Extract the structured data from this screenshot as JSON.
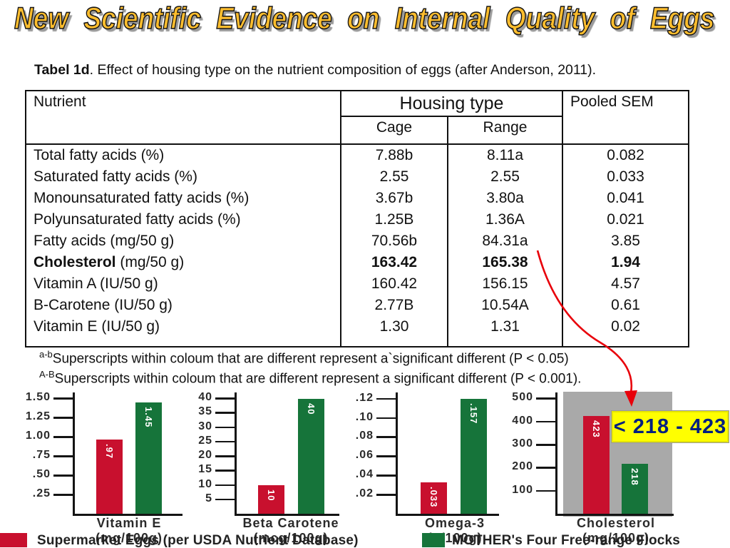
{
  "slide": {
    "title": "New Scientific Evidence on Internal Quality of Eggs",
    "caption_bold": "Tabel 1d",
    "caption_rest": ". Effect of housing type on the nutrient composition of eggs (after Anderson, 2011)."
  },
  "table": {
    "header": {
      "nutrient": "Nutrient",
      "housing": "Housing type",
      "cage": "Cage",
      "range": "Range",
      "sem": "Pooled SEM"
    },
    "rows": [
      {
        "nutrient_strong": "",
        "nutrient": "Total fatty acids (%)",
        "cage": "7.88b",
        "range": "8.11a",
        "sem": "0.082",
        "values_bold": false
      },
      {
        "nutrient_strong": "",
        "nutrient": "Saturated fatty acids (%)",
        "cage": "2.55",
        "range": "2.55",
        "sem": "0.033",
        "values_bold": false
      },
      {
        "nutrient_strong": "",
        "nutrient": "Monounsaturated fatty acids (%)",
        "cage": "3.67b",
        "range": "3.80a",
        "sem": "0.041",
        "values_bold": false
      },
      {
        "nutrient_strong": "",
        "nutrient": "Polyunsaturated fatty acids (%)",
        "cage": "1.25B",
        "range": "1.36A",
        "sem": "0.021",
        "values_bold": false
      },
      {
        "nutrient_strong": "",
        "nutrient": "Fatty acids (mg/50 g)",
        "cage": "70.56b",
        "range": "84.31a",
        "sem": "3.85",
        "values_bold": false
      },
      {
        "nutrient_strong": "Cholesterol",
        "nutrient": " (mg/50 g)",
        "cage": "163.42",
        "range": "165.38",
        "sem": "1.94",
        "values_bold": true
      },
      {
        "nutrient_strong": "",
        "nutrient": "Vitamin A (IU/50 g)",
        "cage": "160.42",
        "range": "156.15",
        "sem": "4.57",
        "values_bold": false
      },
      {
        "nutrient_strong": "",
        "nutrient": "B-Carotene (IU/50 g)",
        "cage": "2.77B",
        "range": "10.54A",
        "sem": "0.61",
        "values_bold": false
      },
      {
        "nutrient_strong": "",
        "nutrient": "Vitamin E (IU/50 g)",
        "cage": "1.30",
        "range": "1.31",
        "sem": "0.02",
        "values_bold": false
      }
    ]
  },
  "footnotes": [
    {
      "sup": "a-b",
      "text": "Superscripts within coloum that are different represent a`significant different (P < 0.05)"
    },
    {
      "sup": "A-B",
      "text": "Superscripts within coloum that are different represent a significant different (P < 0.001)."
    }
  ],
  "callout": {
    "text": "< 218 - 423"
  },
  "legend": {
    "items": [
      {
        "color_key": "bar_red",
        "label": "Supermarket Eggs (per USDA Nutrient Database)"
      },
      {
        "color_key": "bar_green",
        "label": "MOTHER's Four Free-range Flocks"
      }
    ]
  },
  "colors": {
    "bar_red": "#c8102e",
    "bar_green": "#16743a",
    "gray_panel": "#a9a9a9",
    "callout_bg": "#ffff00",
    "callout_text": "#001f80",
    "arrow": "#e8000a",
    "title_gold": "#ffbe2e"
  },
  "chart_data": {
    "type": "bar",
    "legend_position": "bottom",
    "grid": false,
    "series_names": [
      "Supermarket Eggs (per USDA Nutrient Database)",
      "MOTHER's Four Free-range Flocks"
    ],
    "charts": [
      {
        "title": "Vitamin E",
        "unit": "(mg/100g)",
        "axis_max": 1.56,
        "ticks": [
          {
            "label": "1.50",
            "value": 1.5
          },
          {
            "label": "1.25",
            "value": 1.25
          },
          {
            "label": "1.00",
            "value": 1.0
          },
          {
            "label": ".75",
            "value": 0.75
          },
          {
            "label": ".50",
            "value": 0.5
          },
          {
            "label": ".25",
            "value": 0.25
          }
        ],
        "bars": [
          {
            "label": ".97",
            "value": 0.97
          },
          {
            "label": "1.45",
            "value": 1.45
          }
        ],
        "highlighted": false
      },
      {
        "title": "Beta Carotene",
        "unit": "(mcg/100g)",
        "axis_max": 41.5,
        "ticks": [
          {
            "label": "40",
            "value": 40
          },
          {
            "label": "35",
            "value": 35
          },
          {
            "label": "30",
            "value": 30
          },
          {
            "label": "25",
            "value": 25
          },
          {
            "label": "20",
            "value": 20
          },
          {
            "label": "15",
            "value": 15
          },
          {
            "label": "10",
            "value": 10
          },
          {
            "label": "5",
            "value": 5
          }
        ],
        "bars": [
          {
            "label": "10",
            "value": 10
          },
          {
            "label": "40",
            "value": 40
          }
        ],
        "highlighted": false
      },
      {
        "title": "Omega-3",
        "unit": "(g/100g)",
        "axis_max": 0.125,
        "ticks": [
          {
            "label": ".12",
            "value": 0.12
          },
          {
            "label": ".10",
            "value": 0.1
          },
          {
            "label": ".08",
            "value": 0.08
          },
          {
            "label": ".06",
            "value": 0.06
          },
          {
            "label": ".04",
            "value": 0.04
          },
          {
            "label": ".02",
            "value": 0.02
          }
        ],
        "bars": [
          {
            "label": ".033",
            "value": 0.033
          },
          {
            "label": ".157",
            "value": 0.157
          }
        ],
        "highlighted": false
      },
      {
        "title": "Cholesterol",
        "unit": "(mg/100g)",
        "axis_max": 520,
        "ticks": [
          {
            "label": "500",
            "value": 500
          },
          {
            "label": "400",
            "value": 400
          },
          {
            "label": "300",
            "value": 300
          },
          {
            "label": "200",
            "value": 200
          },
          {
            "label": "100",
            "value": 100
          }
        ],
        "bars": [
          {
            "label": "423",
            "value": 423
          },
          {
            "label": "218",
            "value": 218
          }
        ],
        "highlighted": true
      }
    ]
  }
}
